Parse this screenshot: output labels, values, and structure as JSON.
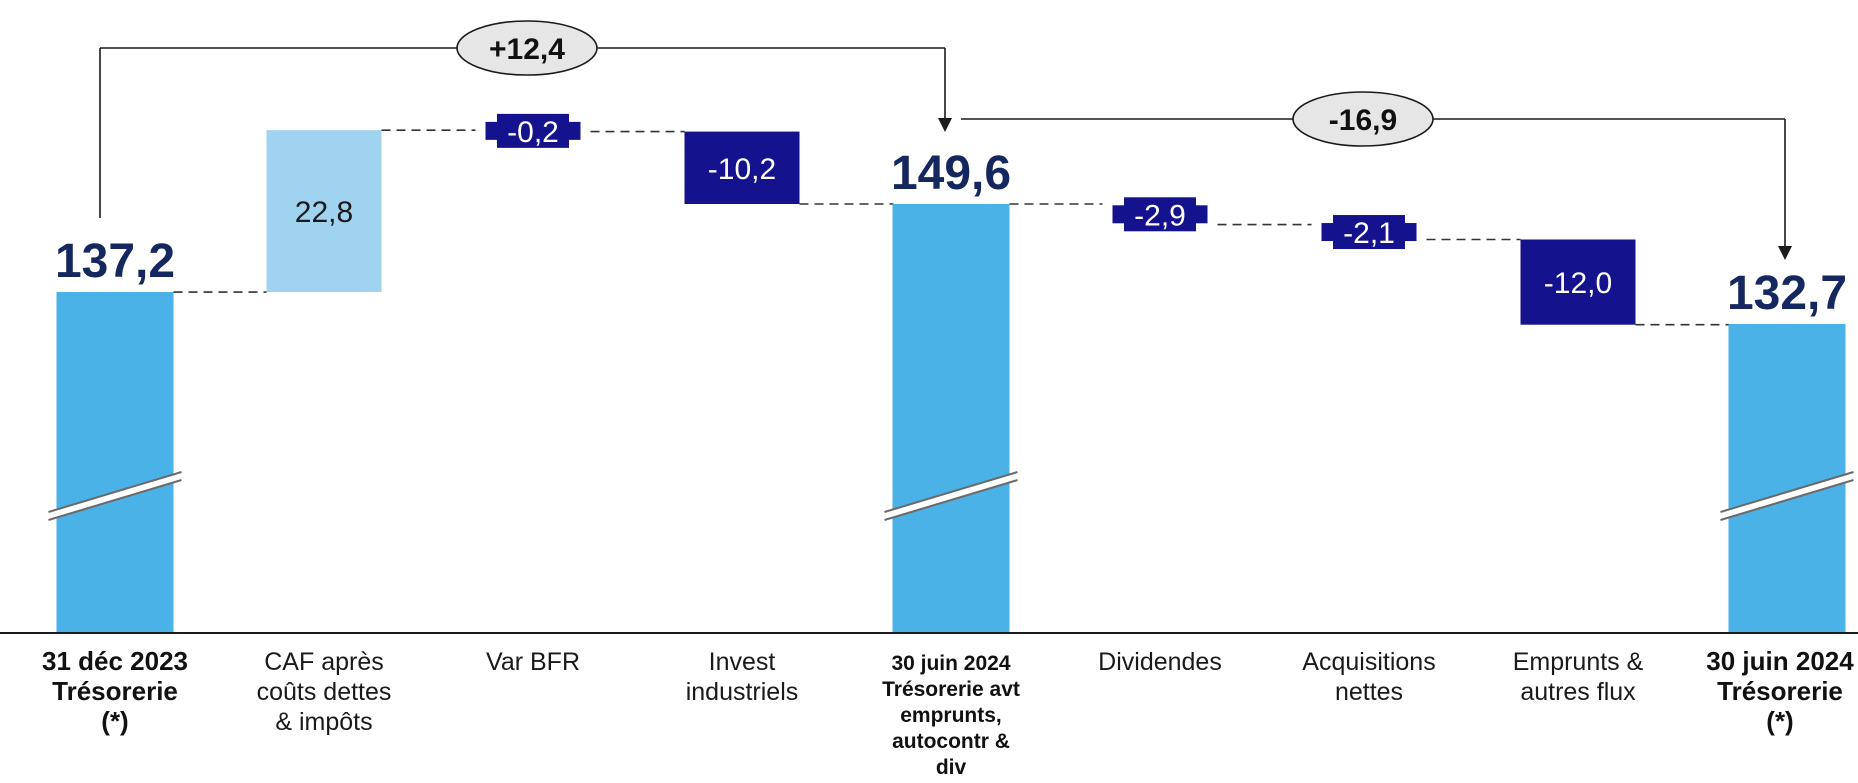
{
  "colors": {
    "total": "#4ab2e6",
    "positive": "#9fd3f0",
    "negative": "#14128c",
    "total_text": "#14275e",
    "connector": "#333333",
    "ellipse_fill": "#e6e6e6"
  },
  "chart_data": {
    "type": "waterfall",
    "title": "",
    "xlabel": "",
    "ylabel": "",
    "axis_break": true,
    "categories": [
      {
        "lines": [
          "31 déc 2023",
          "Trésorerie",
          "(*)"
        ],
        "bold": true
      },
      {
        "lines": [
          "CAF après",
          "coûts dettes",
          "& impôts"
        ],
        "bold": false
      },
      {
        "lines": [
          "Var BFR"
        ],
        "bold": false
      },
      {
        "lines": [
          "Invest",
          "industriels"
        ],
        "bold": false
      },
      {
        "lines": [
          "30 juin 2024",
          "Trésorerie avt",
          "emprunts,",
          "autocontr &",
          "div"
        ],
        "bold": true,
        "small": true
      },
      {
        "lines": [
          "Dividendes"
        ],
        "bold": false
      },
      {
        "lines": [
          "Acquisitions",
          "nettes"
        ],
        "bold": false
      },
      {
        "lines": [
          "Emprunts &",
          "autres flux"
        ],
        "bold": false
      },
      {
        "lines": [
          "30 juin 2024",
          "Trésorerie",
          "(*)"
        ],
        "bold": true
      }
    ],
    "steps": [
      {
        "kind": "total",
        "value": 137.2,
        "label": "137,2"
      },
      {
        "kind": "delta",
        "value": 22.8,
        "label": "22,8"
      },
      {
        "kind": "delta",
        "value": -0.2,
        "label": "-0,2"
      },
      {
        "kind": "delta",
        "value": -10.2,
        "label": "-10,2"
      },
      {
        "kind": "total",
        "value": 149.6,
        "label": "149,6"
      },
      {
        "kind": "delta",
        "value": -2.9,
        "label": "-2,9"
      },
      {
        "kind": "delta",
        "value": -2.1,
        "label": "-2,1"
      },
      {
        "kind": "delta",
        "value": -12.0,
        "label": "-12,0"
      },
      {
        "kind": "total",
        "value": 132.7,
        "label": "132,7"
      }
    ],
    "bridges": [
      {
        "from": 0,
        "to": 4,
        "value": 12.4,
        "label": "+12,4"
      },
      {
        "from": 4,
        "to": 8,
        "value": -16.9,
        "label": "-16,9"
      }
    ]
  }
}
